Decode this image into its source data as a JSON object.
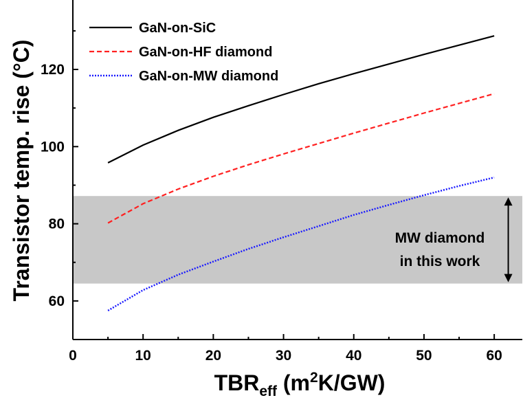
{
  "chart_data": {
    "type": "line",
    "xlabel_main": "TBR",
    "xlabel_sub": "eff",
    "xlabel_tail_open": " (m",
    "xlabel_sup": "2",
    "xlabel_tail_close": "K/GW)",
    "ylabel": "Transistor temp. rise (°C)",
    "xlim": [
      0,
      64
    ],
    "ylim": [
      50,
      138
    ],
    "xticks": [
      0,
      10,
      20,
      30,
      40,
      50,
      60
    ],
    "yticks": [
      60,
      80,
      100,
      120
    ],
    "x": [
      5,
      10,
      15,
      20,
      25,
      30,
      35,
      40,
      45,
      50,
      55,
      60
    ],
    "series": [
      {
        "name": "GaN-on-SiC",
        "color": "#000000",
        "style": "solid",
        "values": [
          95.8,
          100.4,
          104.2,
          107.6,
          110.6,
          113.5,
          116.3,
          118.9,
          121.4,
          123.9,
          126.3,
          128.7
        ]
      },
      {
        "name": "GaN-on-HF diamond",
        "color": "#ff2020",
        "style": "dashed",
        "values": [
          80.2,
          85.2,
          89.0,
          92.3,
          95.3,
          98.1,
          100.8,
          103.5,
          106.1,
          108.7,
          111.2,
          113.7
        ]
      },
      {
        "name": "GaN-on-MW diamond",
        "color": "#1a1aff",
        "style": "dotted",
        "values": [
          57.5,
          62.8,
          66.8,
          70.2,
          73.5,
          76.5,
          79.4,
          82.3,
          84.9,
          87.4,
          89.8,
          92.0
        ]
      }
    ],
    "band": {
      "y_range": [
        64.5,
        87.2
      ],
      "color": "#c8c8c8"
    },
    "annotation": {
      "line1": "MW diamond",
      "line2": "in this work",
      "arrow_x": 62,
      "arrow_range": [
        64.5,
        87.2
      ]
    },
    "legend_position": "top-left",
    "grid": false
  }
}
